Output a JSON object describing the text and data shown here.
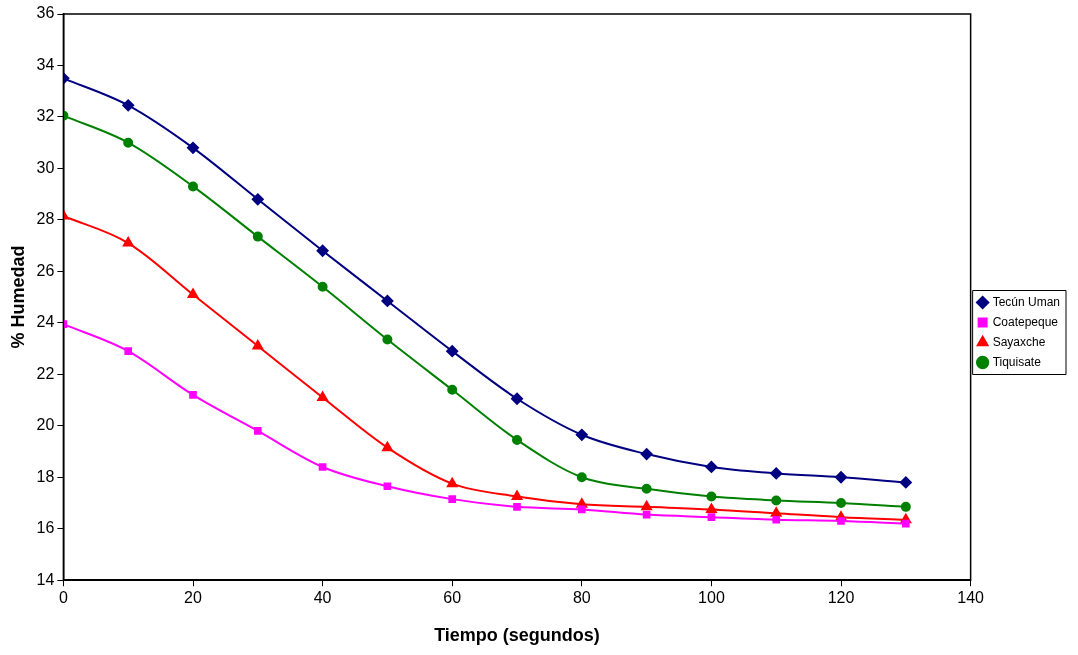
{
  "chart_data": {
    "type": "line",
    "xlabel": "Tiempo (segundos)",
    "ylabel": "% Humedad",
    "x": [
      0,
      10,
      20,
      30,
      40,
      50,
      60,
      70,
      80,
      90,
      100,
      110,
      120,
      130
    ],
    "xlim": [
      0,
      140
    ],
    "xticks": [
      0,
      20,
      40,
      60,
      80,
      100,
      120,
      140
    ],
    "ylim": [
      14,
      36
    ],
    "yticks": [
      14,
      16,
      18,
      20,
      22,
      24,
      26,
      28,
      30,
      32,
      34,
      36
    ],
    "grid": false,
    "legend": "right",
    "series": [
      {
        "name": "Tecún Uman",
        "color": "#000080",
        "marker": "diamond",
        "values": [
          33.5,
          32.45,
          30.8,
          28.8,
          26.8,
          24.85,
          22.9,
          21.05,
          19.65,
          18.9,
          18.4,
          18.15,
          18.0,
          17.8
        ]
      },
      {
        "name": "Coatepeque",
        "color": "#ff00ff",
        "marker": "square",
        "values": [
          23.95,
          22.9,
          21.2,
          19.8,
          18.4,
          17.65,
          17.15,
          16.85,
          16.75,
          16.55,
          16.45,
          16.35,
          16.3,
          16.2
        ]
      },
      {
        "name": "Sayaxche",
        "color": "#ff0000",
        "marker": "triangle",
        "values": [
          28.15,
          27.1,
          25.1,
          23.1,
          21.1,
          19.15,
          17.75,
          17.25,
          16.95,
          16.85,
          16.75,
          16.6,
          16.45,
          16.35
        ]
      },
      {
        "name": "Tiquisate",
        "color": "#008000",
        "marker": "circle",
        "values": [
          32.05,
          31.0,
          29.3,
          27.35,
          25.4,
          23.35,
          21.4,
          19.45,
          18.0,
          17.55,
          17.25,
          17.1,
          17.0,
          16.85
        ]
      }
    ]
  }
}
